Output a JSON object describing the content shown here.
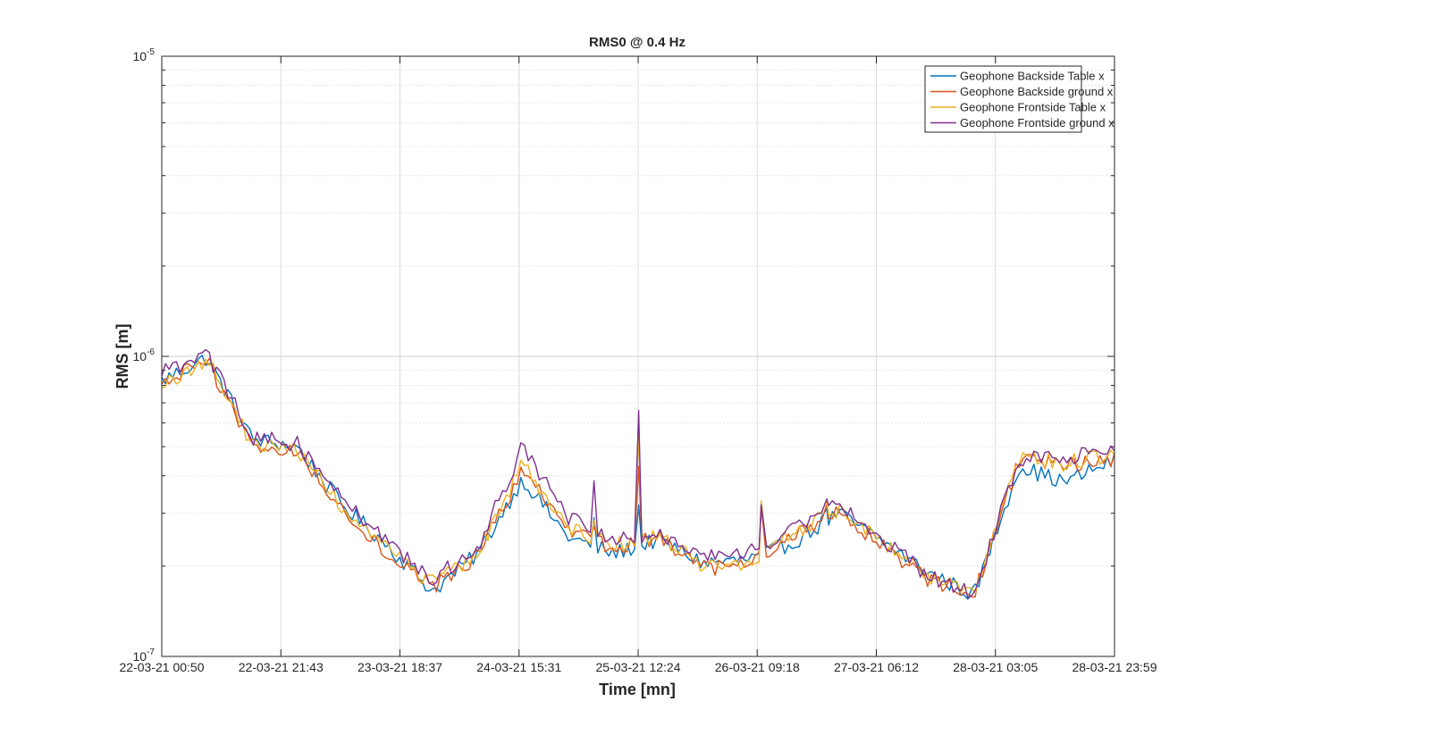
{
  "chart_data": {
    "type": "line",
    "title": "RMS0 @ 0.4 Hz",
    "xlabel": "Time [mn]",
    "ylabel": "RMS [m]",
    "y_scale": "log",
    "ylim": [
      1e-07,
      1e-05
    ],
    "y_tick_labels": [
      "10^-7",
      "10^-6",
      "10^-5"
    ],
    "x_tick_labels": [
      "22-03-21 00:50",
      "22-03-21 21:43",
      "23-03-21 18:37",
      "24-03-21 15:31",
      "25-03-21 12:24",
      "26-03-21 09:18",
      "27-03-21 06:12",
      "28-03-21 03:05",
      "28-03-21 23:59"
    ],
    "xlim": [
      "2021-03-22 00:50",
      "2021-03-28 23:59"
    ],
    "grid": true,
    "legend_position": "top-right",
    "x": [
      "2021-03-22 00:50",
      "2021-03-22 08:45",
      "2021-03-22 16:40",
      "2021-03-23 00:35",
      "2021-03-23 08:30",
      "2021-03-23 16:25",
      "2021-03-24 00:20",
      "2021-03-24 08:15",
      "2021-03-24 16:10",
      "2021-03-25 00:05",
      "2021-03-25 08:00",
      "2021-03-25 15:55",
      "2021-03-25 23:50",
      "2021-03-26 07:45",
      "2021-03-26 15:40",
      "2021-03-26 23:35",
      "2021-03-27 07:30",
      "2021-03-27 15:25",
      "2021-03-27 23:20",
      "2021-03-28 07:15",
      "2021-03-28 15:10",
      "2021-03-28 23:59"
    ],
    "series": [
      {
        "name": "Geophone Backside Table x",
        "color": "#0072BD",
        "values": [
          8.3e-07,
          9.9e-07,
          5.3e-07,
          5e-07,
          3.2e-07,
          2.35e-07,
          1.65e-07,
          2.2e-07,
          3.9e-07,
          2.5e-07,
          2.2e-07,
          2.45e-07,
          2.05e-07,
          2.1e-07,
          2.4e-07,
          3e-07,
          2.4e-07,
          1.9e-07,
          1.6e-07,
          4.3e-07,
          3.8e-07,
          4.5e-07
        ]
      },
      {
        "name": "Geophone Backside ground x",
        "color": "#D95319",
        "values": [
          8e-07,
          9.7e-07,
          5e-07,
          4.8e-07,
          3.1e-07,
          2.2e-07,
          1.7e-07,
          2.15e-07,
          4.2e-07,
          2.6e-07,
          2.3e-07,
          2.5e-07,
          1.95e-07,
          2e-07,
          2.5e-07,
          3.1e-07,
          2.3e-07,
          1.8e-07,
          1.6e-07,
          4.5e-07,
          4.3e-07,
          4.6e-07
        ]
      },
      {
        "name": "Geophone Frontside Table x",
        "color": "#EDB120",
        "values": [
          7.9e-07,
          9.8e-07,
          5.1e-07,
          4.9e-07,
          3.15e-07,
          2.25e-07,
          1.75e-07,
          2.2e-07,
          4.4e-07,
          2.7e-07,
          2.35e-07,
          2.5e-07,
          2e-07,
          2.05e-07,
          2.55e-07,
          3.1e-07,
          2.35e-07,
          1.85e-07,
          1.6e-07,
          4.6e-07,
          4.4e-07,
          4.7e-07
        ]
      },
      {
        "name": "Geophone Frontside ground x",
        "color": "#7E2F8E",
        "values": [
          8.8e-07,
          1.02e-06,
          5.4e-07,
          5.1e-07,
          3.4e-07,
          2.4e-07,
          1.8e-07,
          2.3e-07,
          5e-07,
          2.9e-07,
          2.4e-07,
          2.6e-07,
          2.15e-07,
          2.2e-07,
          2.7e-07,
          3.3e-07,
          2.45e-07,
          1.85e-07,
          1.6e-07,
          4.6e-07,
          4.5e-07,
          5e-07
        ]
      }
    ],
    "spikes": [
      {
        "x": "2021-03-25 04:40",
        "values": [
          2.9e-07,
          2.7e-07,
          2.85e-07,
          3.85e-07
        ]
      },
      {
        "x": "2021-03-25 12:30",
        "values": [
          3.2e-07,
          4.3e-07,
          5.5e-07,
          6.6e-07
        ]
      },
      {
        "x": "2021-03-26 10:00",
        "values": [
          3.1e-07,
          3.2e-07,
          3.3e-07,
          3.2e-07
        ]
      },
      {
        "x": "2021-03-26 21:30",
        "values": [
          3.1e-07,
          3.2e-07,
          3.3e-07,
          3.35e-07
        ]
      }
    ]
  }
}
